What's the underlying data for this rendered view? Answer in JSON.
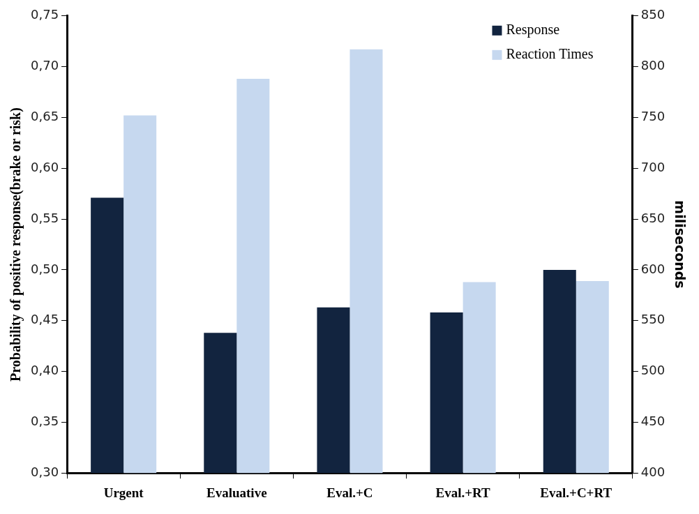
{
  "chart_data": {
    "type": "bar",
    "categories": [
      "Urgent",
      "Evaluative",
      "Eval.+C",
      "Eval.+RT",
      "Eval.+C+RT"
    ],
    "series": [
      {
        "name": "Response",
        "color": "#12243f",
        "values": [
          0.571,
          0.438,
          0.463,
          0.458,
          0.5
        ]
      },
      {
        "name": "Reaction Times",
        "color": "#c6d8ef",
        "axis": "y2",
        "values": [
          752,
          788,
          817,
          588,
          589
        ]
      }
    ],
    "ylabel": "Probability of positive response(brake or risk)",
    "y2label": "miliseconds",
    "ylim": [
      0.3,
      0.75
    ],
    "yticks": [
      {
        "value": 0.3,
        "label": "0,30"
      },
      {
        "value": 0.35,
        "label": "0,35"
      },
      {
        "value": 0.4,
        "label": "0,40"
      },
      {
        "value": 0.45,
        "label": "0,45"
      },
      {
        "value": 0.5,
        "label": "0,50"
      },
      {
        "value": 0.55,
        "label": "0,55"
      },
      {
        "value": 0.6,
        "label": "0,60"
      },
      {
        "value": 0.65,
        "label": "0,65"
      },
      {
        "value": 0.7,
        "label": "0,70"
      },
      {
        "value": 0.75,
        "label": "0,75"
      }
    ],
    "y2lim": [
      400,
      850
    ],
    "y2ticks": [
      400,
      450,
      500,
      550,
      600,
      650,
      700,
      750,
      800,
      850
    ],
    "legend": "top right",
    "grid": false
  }
}
